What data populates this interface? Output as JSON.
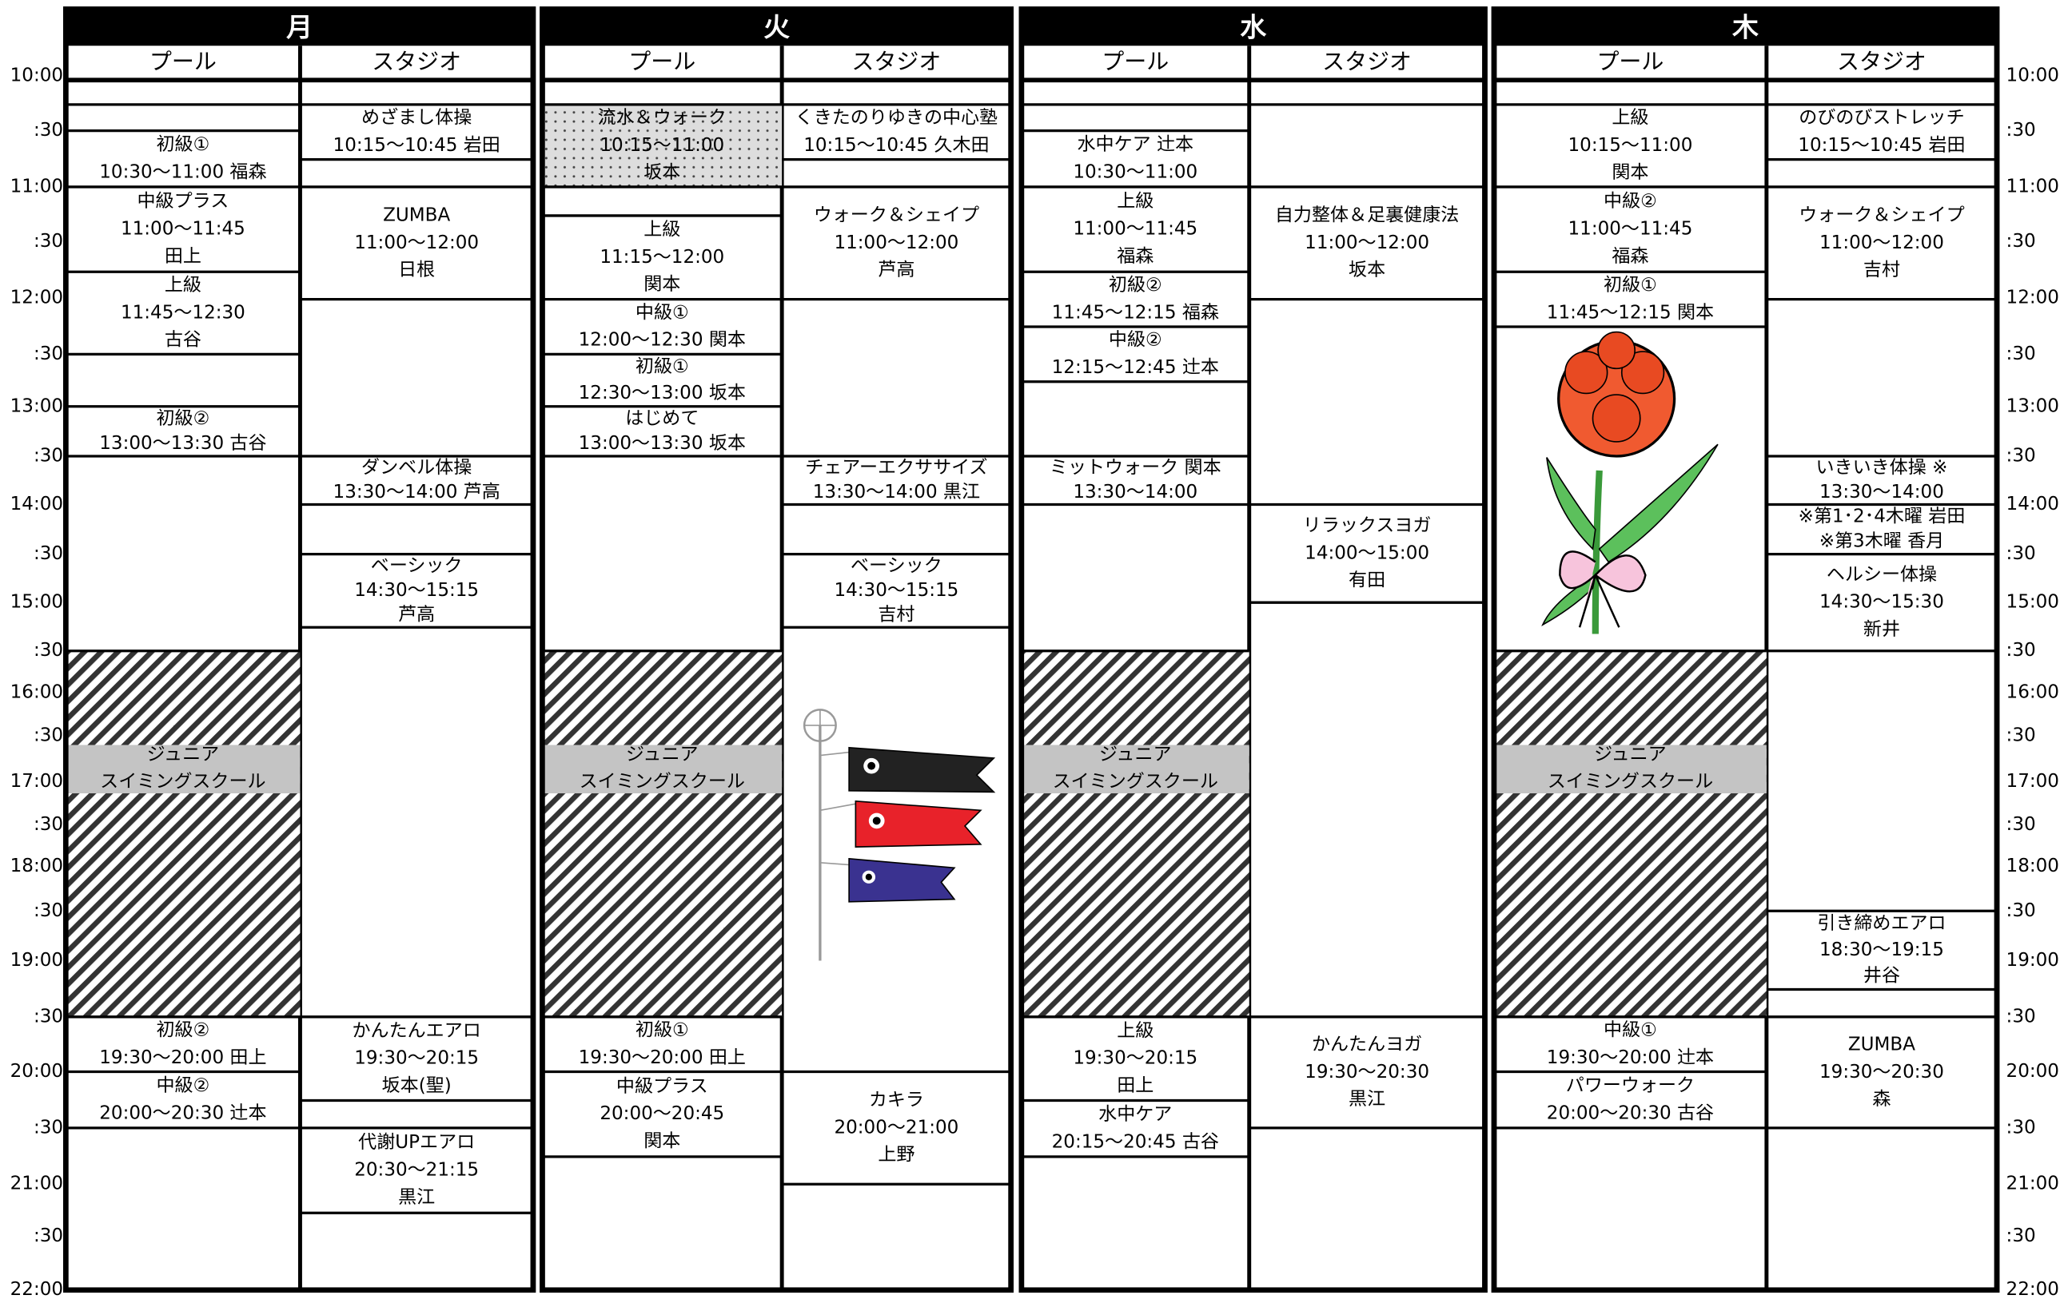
{
  "time_labels": [
    "10:00",
    ":30",
    "11:00",
    ":30",
    "12:00",
    ":30",
    "13:00",
    ":30",
    "14:00",
    ":30",
    "15:00",
    ":30",
    "16:00",
    ":30",
    "17:00",
    ":30",
    "18:00",
    ":30",
    "19:00",
    ":30",
    "20:00",
    ":30",
    "21:00",
    ":30",
    "22:00"
  ],
  "days": [
    {
      "name": "月",
      "columns": [
        {
          "name": "プール",
          "blocks": [
            {
              "lines": [
                "初級①",
                "10:30～11:00 福森"
              ]
            },
            {
              "lines": [
                "中級プラス",
                "11:00～11:45",
                "田上"
              ]
            },
            {
              "lines": [
                "上級",
                "11:45～12:30",
                "古谷"
              ]
            },
            {
              "lines": [
                "初級②",
                "13:00～13:30 古谷"
              ]
            },
            {
              "lines": [
                "ジュニア",
                "スイミングスクール"
              ]
            },
            {
              "lines": [
                "初級②",
                "19:30～20:00 田上"
              ]
            },
            {
              "lines": [
                "中級②",
                "20:00～20:30 辻本"
              ]
            }
          ]
        },
        {
          "name": "スタジオ",
          "blocks": [
            {
              "lines": [
                "めざまし体操",
                "10:15～10:45 岩田"
              ]
            },
            {
              "lines": [
                "ZUMBA",
                "11:00～12:00",
                "日根"
              ]
            },
            {
              "lines": [
                "ダンベル体操",
                "13:30～14:00 芦高"
              ]
            },
            {
              "lines": [
                "ベーシック",
                "14:30～15:15",
                "芦高"
              ]
            },
            {
              "lines": [
                "かんたんエアロ",
                "19:30～20:15",
                "坂本(聖)"
              ]
            },
            {
              "lines": [
                "代謝UPエアロ",
                "20:30～21:15",
                "黒江"
              ]
            }
          ]
        }
      ]
    },
    {
      "name": "火",
      "columns": [
        {
          "name": "プール",
          "blocks": [
            {
              "lines": [
                "流水＆ウォーク",
                "10:15～11:00",
                "坂本"
              ]
            },
            {
              "lines": [
                "上級",
                "11:15～12:00",
                "関本"
              ]
            },
            {
              "lines": [
                "中級①",
                "12:00～12:30 関本"
              ]
            },
            {
              "lines": [
                "初級①",
                "12:30～13:00 坂本"
              ]
            },
            {
              "lines": [
                "はじめて",
                "13:00～13:30 坂本"
              ]
            },
            {
              "lines": [
                "ジュニア",
                "スイミングスクール"
              ]
            },
            {
              "lines": [
                "初級①",
                "19:30～20:00 田上"
              ]
            },
            {
              "lines": [
                "中級プラス",
                "20:00～20:45",
                "関本"
              ]
            }
          ]
        },
        {
          "name": "スタジオ",
          "blocks": [
            {
              "lines": [
                "くきたのりゆきの中心塾",
                "10:15～10:45 久木田"
              ]
            },
            {
              "lines": [
                "ウォーク＆シェイプ",
                "11:00～12:00",
                "芦高"
              ]
            },
            {
              "lines": [
                "チェアーエクササイズ",
                "13:30～14:00 黒江"
              ]
            },
            {
              "lines": [
                "ベーシック",
                "14:30～15:15",
                "吉村"
              ]
            },
            {
              "lines": [
                "カキラ",
                "20:00～21:00",
                "上野"
              ]
            }
          ]
        }
      ]
    },
    {
      "name": "水",
      "columns": [
        {
          "name": "プール",
          "blocks": [
            {
              "lines": [
                "水中ケア 辻本",
                "10:30～11:00"
              ]
            },
            {
              "lines": [
                "上級",
                "11:00～11:45",
                "福森"
              ]
            },
            {
              "lines": [
                "初級②",
                "11:45～12:15 福森"
              ]
            },
            {
              "lines": [
                "中級②",
                "12:15～12:45 辻本"
              ]
            },
            {
              "lines": [
                "ミットウォーク 関本",
                "13:30～14:00"
              ]
            },
            {
              "lines": [
                "ジュニア",
                "スイミングスクール"
              ]
            },
            {
              "lines": [
                "上級",
                "19:30～20:15",
                "田上"
              ]
            },
            {
              "lines": [
                "水中ケア",
                "20:15～20:45 古谷"
              ]
            }
          ]
        },
        {
          "name": "スタジオ",
          "blocks": [
            {
              "lines": [
                "自力整体＆足裏健康法",
                "11:00～12:00",
                "坂本"
              ]
            },
            {
              "lines": [
                "リラックスヨガ",
                "14:00～15:00",
                "有田"
              ]
            },
            {
              "lines": [
                "かんたんヨガ",
                "19:30～20:30",
                "黒江"
              ]
            }
          ]
        }
      ]
    },
    {
      "name": "木",
      "columns": [
        {
          "name": "プール",
          "blocks": [
            {
              "lines": [
                "上級",
                "10:15～11:00",
                "関本"
              ]
            },
            {
              "lines": [
                "中級②",
                "11:00～11:45",
                "福森"
              ]
            },
            {
              "lines": [
                "初級①",
                "11:45～12:15 関本"
              ]
            },
            {
              "lines": [
                "ジュニア",
                "スイミングスクール"
              ]
            },
            {
              "lines": [
                "中級①",
                "19:30～20:00 辻本"
              ]
            },
            {
              "lines": [
                "パワーウォーク",
                "20:00～20:30 古谷"
              ]
            }
          ]
        },
        {
          "name": "スタジオ",
          "blocks": [
            {
              "lines": [
                "のびのびストレッチ",
                "10:15～10:45 岩田"
              ]
            },
            {
              "lines": [
                "ウォーク＆シェイプ",
                "11:00～12:00",
                "吉村"
              ]
            },
            {
              "lines": [
                "いきいき体操 ※",
                "13:30～14:00"
              ]
            },
            {
              "lines": [
                "※第1･2･4木曜 岩田",
                "※第3木曜 香月"
              ]
            },
            {
              "lines": [
                "ヘルシー体操",
                "14:30～15:30",
                "新井"
              ]
            },
            {
              "lines": [
                "引き締めエアロ",
                "18:30～19:15",
                "井谷"
              ]
            },
            {
              "lines": [
                "ZUMBA",
                "19:30～20:30",
                "森"
              ]
            }
          ]
        }
      ]
    }
  ]
}
